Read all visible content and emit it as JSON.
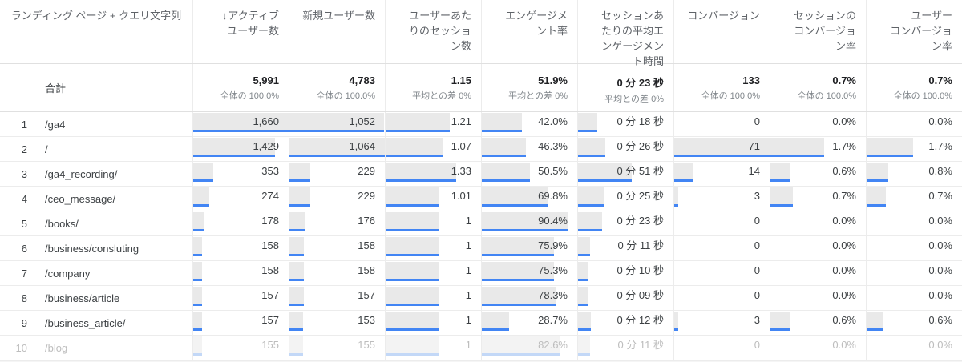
{
  "table": {
    "dimension_header": "ランディング ページ + クエリ文字列",
    "sort_icon": "↓",
    "metric_headers": [
      "アクティブ\nユーザー数",
      "新規ユーザー数",
      "ユーザーあた\nりのセッショ\nン数",
      "エンゲージメ\nント率",
      "セッションあ\nたりの平均エ\nンゲージメン\nト時間",
      "コンバージョン",
      "セッションの\nコンバージョ\nン率",
      "ユーザー\nコンバージョ\nン率"
    ],
    "totals": {
      "label": "合計",
      "cells": [
        {
          "value": "5,991",
          "subtext": "全体の 100.0%"
        },
        {
          "value": "4,783",
          "subtext": "全体の 100.0%"
        },
        {
          "value": "1.15",
          "subtext": "平均との差 0%"
        },
        {
          "value": "51.9%",
          "subtext": "平均との差 0%"
        },
        {
          "value": "0 分 23 秒",
          "subtext": "平均との差 0%"
        },
        {
          "value": "133",
          "subtext": "全体の 100.0%"
        },
        {
          "value": "0.7%",
          "subtext": "全体の 100.0%"
        },
        {
          "value": "0.7%",
          "subtext": "全体の 100.0%"
        }
      ]
    },
    "rows": [
      {
        "index": "1",
        "page": "/ga4",
        "values": [
          "1,660",
          "1,052",
          "1.21",
          "42.0%",
          "0 分 18 秒",
          "0",
          "0.0%",
          "0.0%"
        ],
        "bars": [
          100,
          98.9,
          67.2,
          42.0,
          20.0,
          0,
          0,
          0
        ],
        "faded": false
      },
      {
        "index": "2",
        "page": "/",
        "values": [
          "1,429",
          "1,064",
          "1.07",
          "46.3%",
          "0 分 26 秒",
          "71",
          "1.7%",
          "1.7%"
        ],
        "bars": [
          86.1,
          100,
          59.4,
          46.3,
          28.9,
          100,
          56.7,
          48.6
        ],
        "faded": false
      },
      {
        "index": "3",
        "page": "/ga4_recording/",
        "values": [
          "353",
          "229",
          "1.33",
          "50.5%",
          "0 分 51 秒",
          "14",
          "0.6%",
          "0.8%"
        ],
        "bars": [
          21.3,
          21.5,
          73.9,
          50.5,
          56.7,
          19.7,
          20.0,
          22.9
        ],
        "faded": false
      },
      {
        "index": "4",
        "page": "/ceo_message/",
        "values": [
          "274",
          "229",
          "1.01",
          "69.8%",
          "0 分 25 秒",
          "3",
          "0.7%",
          "0.7%"
        ],
        "bars": [
          16.5,
          21.5,
          56.1,
          69.8,
          27.8,
          4.2,
          23.3,
          20.0
        ],
        "faded": false
      },
      {
        "index": "5",
        "page": "/books/",
        "values": [
          "178",
          "176",
          "1",
          "90.4%",
          "0 分 23 秒",
          "0",
          "0.0%",
          "0.0%"
        ],
        "bars": [
          10.7,
          16.5,
          55.6,
          90.4,
          25.6,
          0,
          0,
          0
        ],
        "faded": false
      },
      {
        "index": "6",
        "page": "/business/consluting",
        "values": [
          "158",
          "158",
          "1",
          "75.9%",
          "0 分 11 秒",
          "0",
          "0.0%",
          "0.0%"
        ],
        "bars": [
          9.5,
          14.8,
          55.6,
          75.9,
          12.2,
          0,
          0,
          0
        ],
        "faded": false
      },
      {
        "index": "7",
        "page": "/company",
        "values": [
          "158",
          "158",
          "1",
          "75.3%",
          "0 分 10 秒",
          "0",
          "0.0%",
          "0.0%"
        ],
        "bars": [
          9.5,
          14.8,
          55.6,
          75.3,
          11.1,
          0,
          0,
          0
        ],
        "faded": false
      },
      {
        "index": "8",
        "page": "/business/article",
        "values": [
          "157",
          "157",
          "1",
          "78.3%",
          "0 分 09 秒",
          "0",
          "0.0%",
          "0.0%"
        ],
        "bars": [
          9.5,
          14.8,
          55.6,
          78.3,
          10.0,
          0,
          0,
          0
        ],
        "faded": false
      },
      {
        "index": "9",
        "page": "/business_article/",
        "values": [
          "157",
          "153",
          "1",
          "28.7%",
          "0 分 12 秒",
          "3",
          "0.6%",
          "0.6%"
        ],
        "bars": [
          9.5,
          14.4,
          55.6,
          28.7,
          13.3,
          4.2,
          20.0,
          17.1
        ],
        "faded": false
      },
      {
        "index": "10",
        "page": "/blog",
        "values": [
          "155",
          "155",
          "1",
          "82.6%",
          "0 分 11 秒",
          "0",
          "0.0%",
          "0.0%"
        ],
        "bars": [
          9.3,
          14.6,
          55.6,
          82.6,
          12.2,
          0,
          0,
          0
        ],
        "faded": true
      }
    ]
  },
  "colors": {
    "bar_fill": "#e9e9e9",
    "bar_accent": "#4285f4",
    "border": "#e0e0e0",
    "header_text": "#5f6368",
    "value_text": "#3c4043",
    "subtext_text": "#80868b"
  }
}
